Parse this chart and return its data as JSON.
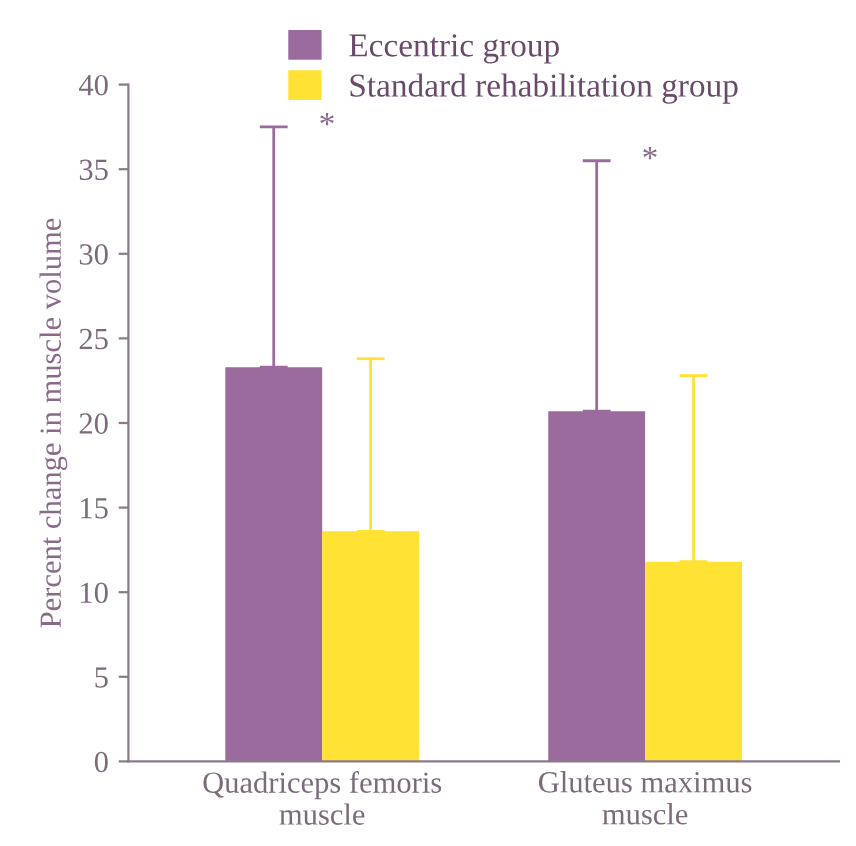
{
  "chart_data": {
    "type": "bar",
    "ylabel": "Percent change in muscle volume",
    "categories": [
      "Quadriceps femoris\nmuscle",
      "Gluteus maximus\nmuscle"
    ],
    "series": [
      {
        "name": "Eccentric group",
        "color": "#9b6b9e",
        "values": [
          23.3,
          20.7
        ],
        "errors": [
          [
            23.3,
            37.5
          ],
          [
            20.7,
            35.5
          ]
        ]
      },
      {
        "name": "Standard rehabilitation group",
        "color": "#ffe234",
        "values": [
          13.6,
          11.8
        ],
        "errors": [
          [
            13.6,
            23.8
          ],
          [
            11.8,
            22.8
          ]
        ]
      }
    ],
    "ylim": [
      0,
      40
    ],
    "yticks": [
      0,
      5,
      10,
      15,
      20,
      25,
      30,
      35,
      40
    ],
    "grid": false,
    "legend": "top",
    "annotations": [
      "*",
      "*"
    ]
  }
}
